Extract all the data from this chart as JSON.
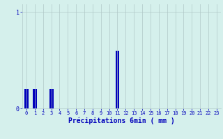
{
  "values": [
    0.2,
    0.2,
    0.0,
    0.2,
    0.0,
    0.0,
    0.0,
    0.0,
    0.0,
    0.0,
    0.0,
    0.6,
    0.0,
    0.0,
    0.0,
    0.0,
    0.0,
    0.0,
    0.0,
    0.0,
    0.0,
    0.0,
    0.0,
    0.0
  ],
  "bar_color": "#0000bb",
  "bg_color": "#d5f0ec",
  "grid_color": "#b0c8c8",
  "xlabel": "Précipitations 6min ( mm )",
  "xlabel_color": "#0000bb",
  "tick_color": "#0000bb",
  "ytick_labels": [
    "0",
    "1"
  ],
  "ytick_values": [
    0,
    1
  ],
  "ylim": [
    0,
    1.08
  ],
  "xlim": [
    -0.5,
    23.5
  ],
  "num_bars": 24,
  "xlabel_fontsize": 7,
  "xtick_fontsize": 5,
  "ytick_fontsize": 6
}
